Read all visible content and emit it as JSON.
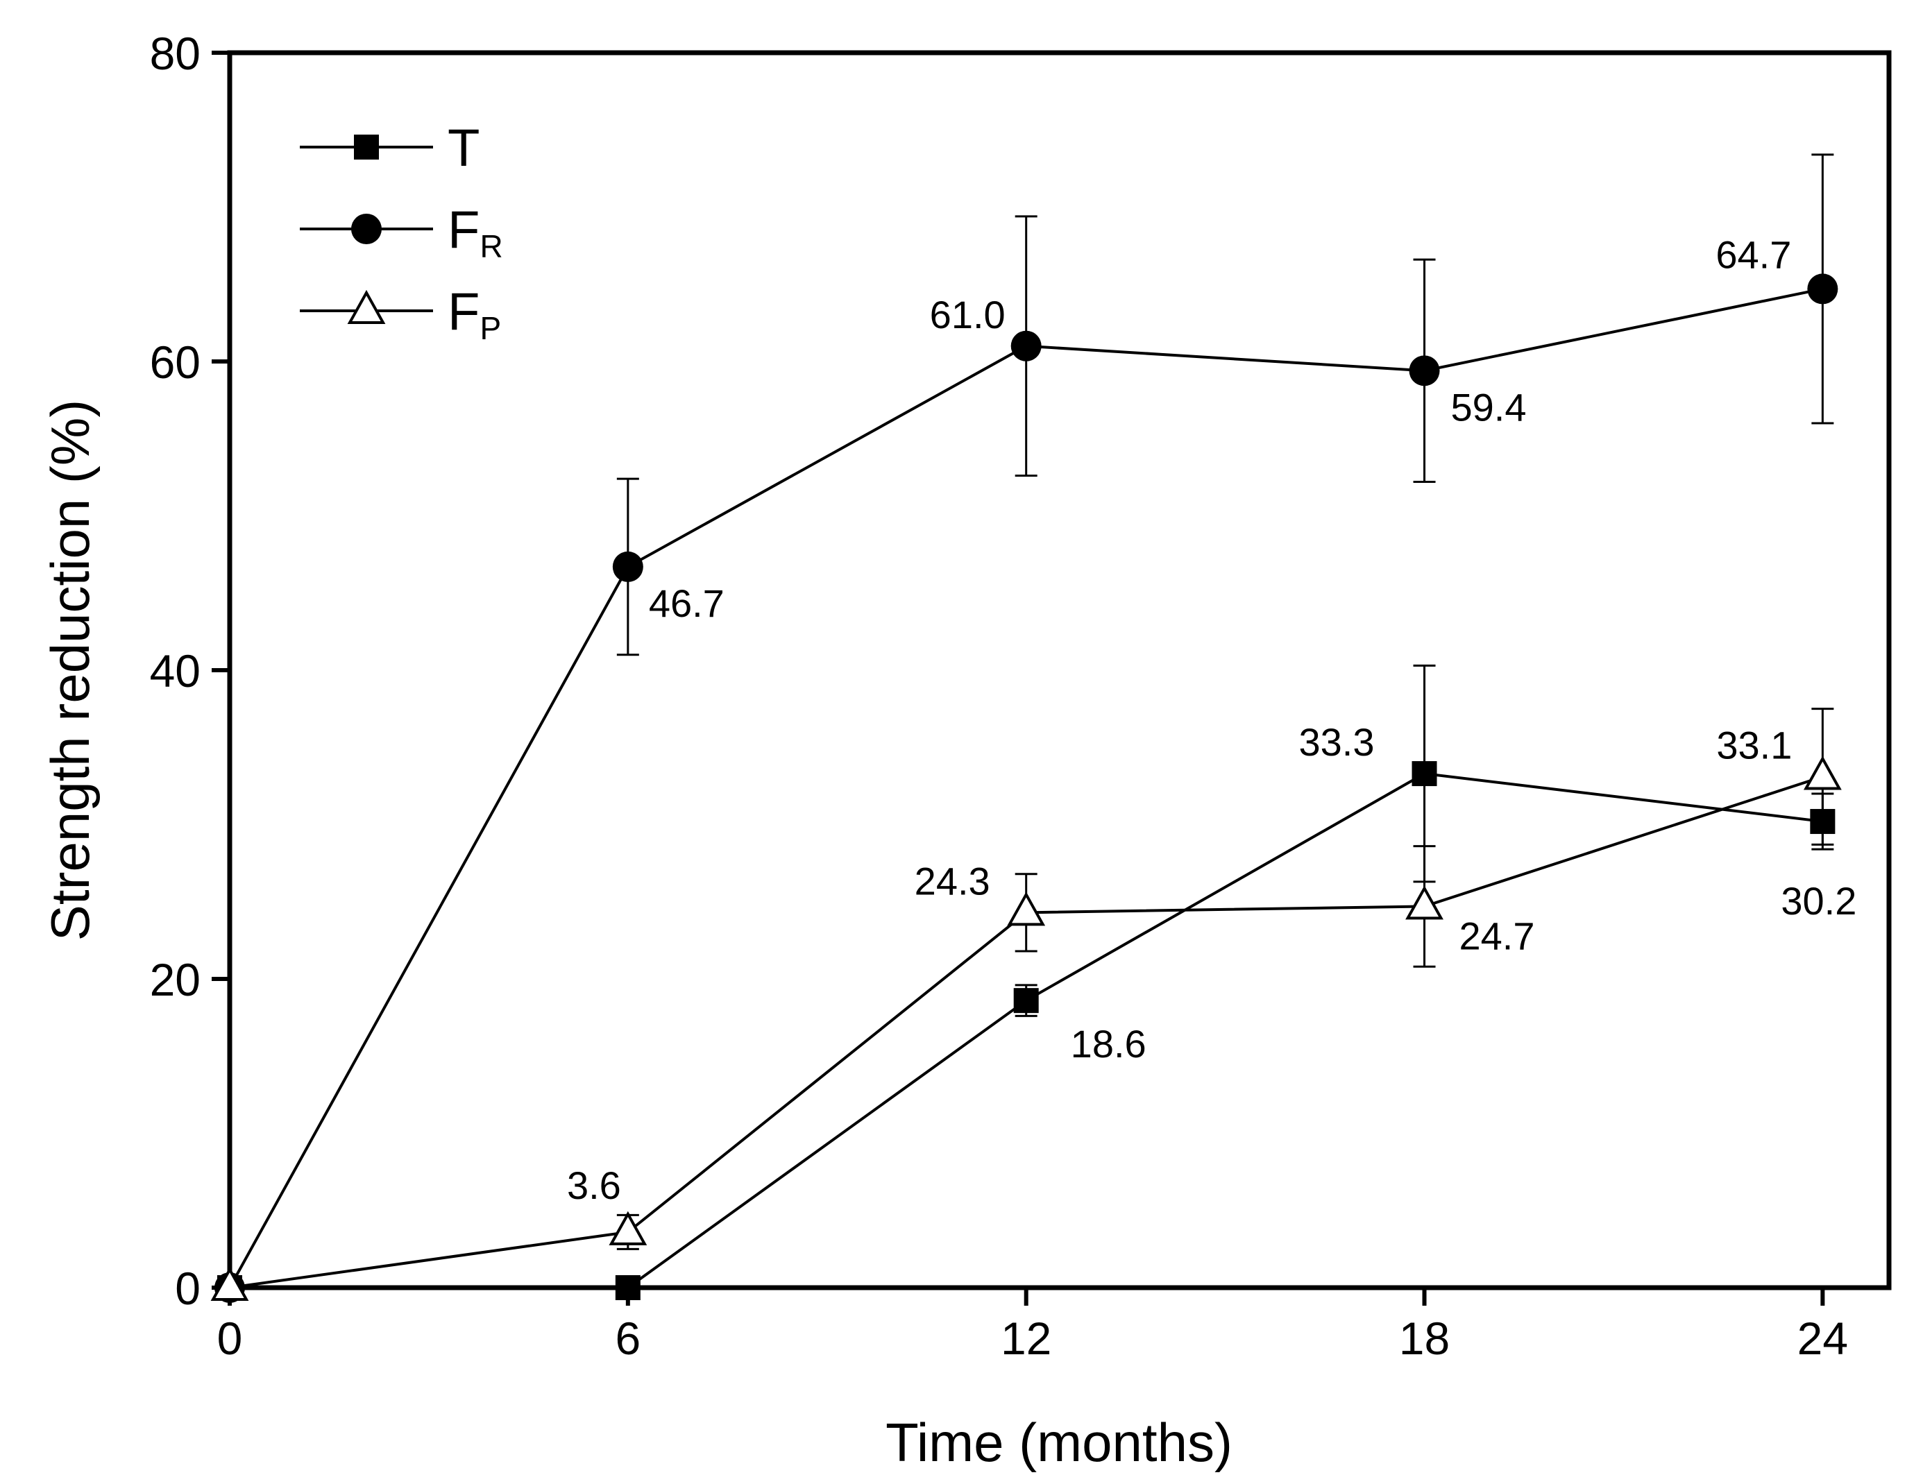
{
  "chart_data": {
    "type": "line",
    "title": "",
    "xlabel": "Time (months)",
    "ylabel": "Strength reduction (%)",
    "xlim": [
      0,
      25
    ],
    "ylim": [
      0,
      80
    ],
    "xticks": [
      0,
      6,
      12,
      18,
      24
    ],
    "yticks": [
      0,
      20,
      40,
      60,
      80
    ],
    "grid": false,
    "legend_position": "top-left",
    "series": [
      {
        "name": "T",
        "legend_main": "T",
        "legend_sub": "",
        "marker": "square-filled",
        "x": [
          0,
          6,
          12,
          18,
          24
        ],
        "y": [
          0,
          0,
          18.6,
          33.3,
          30.2
        ],
        "error": [
          0,
          0,
          1.0,
          7.0,
          1.8
        ],
        "labels": [
          "",
          "",
          "18.6",
          "33.3",
          "30.2"
        ]
      },
      {
        "name": "FR",
        "legend_main": "F",
        "legend_sub": "R",
        "marker": "circle-filled",
        "x": [
          0,
          6,
          12,
          18,
          24
        ],
        "y": [
          0,
          46.7,
          61.0,
          59.4,
          64.7
        ],
        "error": [
          0,
          5.7,
          8.4,
          7.2,
          8.7
        ],
        "labels": [
          "",
          "46.7",
          "61.0",
          "59.4",
          "64.7"
        ]
      },
      {
        "name": "FP",
        "legend_main": "F",
        "legend_sub": "P",
        "marker": "triangle-open",
        "x": [
          0,
          6,
          12,
          18,
          24
        ],
        "y": [
          0,
          3.6,
          24.3,
          24.7,
          33.1
        ],
        "error": [
          0,
          1.1,
          2.5,
          3.9,
          4.4
        ],
        "labels": [
          "",
          "3.6",
          "24.3",
          "24.7",
          "33.1"
        ]
      }
    ]
  }
}
